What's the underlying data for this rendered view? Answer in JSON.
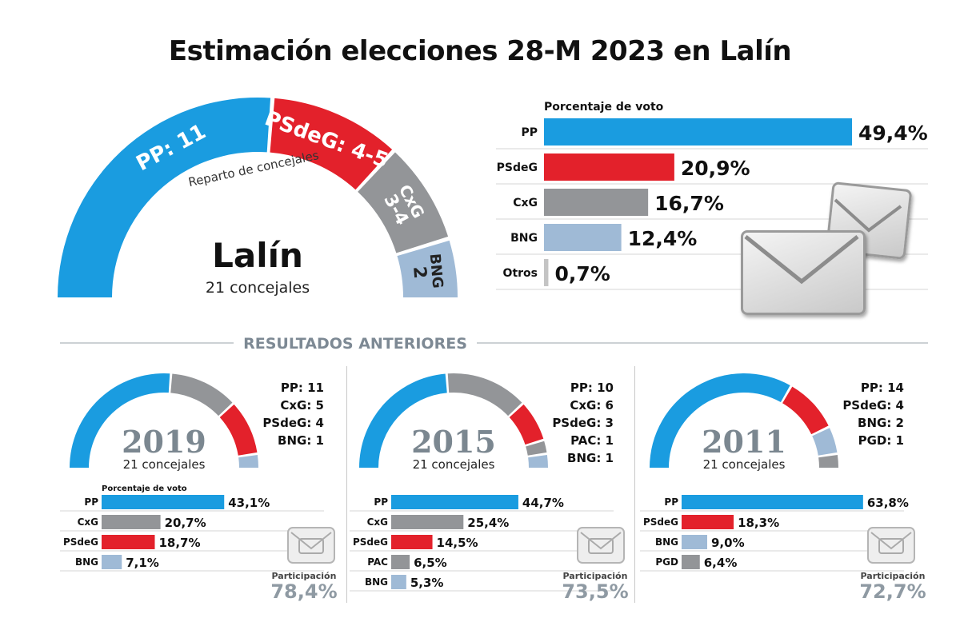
{
  "title": "Estimación elecciones 28-M 2023 en Lalín",
  "colors": {
    "PP": "#1a9ce0",
    "PSdeG": "#e3212b",
    "CxG": "#939598",
    "BNG": "#9fbad6",
    "PAC": "#939598",
    "PGD": "#939598",
    "Otros": "#c4c4c4"
  },
  "main": {
    "name": "Lalín",
    "subtitle": "21 concejales",
    "reparto_label": "Reparto de concejales",
    "seat_labels": [
      "PP: 11",
      "PSdeG: 4-5",
      "CxG 3-4",
      "BNG 2"
    ],
    "icons": [
      "envelope-icon",
      "envelope-icon"
    ]
  },
  "separator_label": "RESULTADOS ANTERIORES",
  "chart_data": [
    {
      "type": "pie",
      "subtype": "parliament-semicircle",
      "title": "Reparto de concejales",
      "total_label": "21 concejales",
      "categories": [
        "PP",
        "PSdeG",
        "CxG",
        "BNG"
      ],
      "values": [
        11,
        4.5,
        3.5,
        2
      ],
      "labels": [
        "PP: 11",
        "PSdeG: 4-5",
        "CxG 3-4",
        "BNG 2"
      ]
    },
    {
      "type": "bar",
      "orientation": "horizontal",
      "title": "Porcentaje de voto",
      "categories": [
        "PP",
        "PSdeG",
        "CxG",
        "BNG",
        "Otros"
      ],
      "values": [
        49.4,
        20.9,
        16.7,
        12.4,
        0.7
      ],
      "value_labels": [
        "49,4%",
        "20,9%",
        "16,7%",
        "12,4%",
        "0,7%"
      ],
      "xlim": [
        0,
        60
      ]
    }
  ],
  "previous": [
    {
      "year": "2019",
      "subtitle": "21 concejales",
      "seats": [
        {
          "party": "PP",
          "seats": 11
        },
        {
          "party": "CxG",
          "seats": 5
        },
        {
          "party": "PSdeG",
          "seats": 4
        },
        {
          "party": "BNG",
          "seats": 1
        }
      ],
      "seat_texts": [
        "PP: 11",
        "CxG: 5",
        "PSdeG: 4",
        "BNG: 1"
      ],
      "bars_title": "Porcentaje de voto",
      "bars": [
        {
          "party": "PP",
          "value": 43.1,
          "label": "43,1%"
        },
        {
          "party": "CxG",
          "value": 20.7,
          "label": "20,7%"
        },
        {
          "party": "PSdeG",
          "value": 18.7,
          "label": "18,7%"
        },
        {
          "party": "BNG",
          "value": 7.1,
          "label": "7,1%"
        }
      ],
      "participation_label": "Participación",
      "participation": "78,4%"
    },
    {
      "year": "2015",
      "subtitle": "21 concejales",
      "seats": [
        {
          "party": "PP",
          "seats": 10
        },
        {
          "party": "CxG",
          "seats": 6
        },
        {
          "party": "PSdeG",
          "seats": 3
        },
        {
          "party": "PAC",
          "seats": 1
        },
        {
          "party": "BNG",
          "seats": 1
        }
      ],
      "seat_texts": [
        "PP: 10",
        "CxG: 6",
        "PSdeG: 3",
        "PAC: 1",
        "BNG: 1"
      ],
      "bars_title": "",
      "bars": [
        {
          "party": "PP",
          "value": 44.7,
          "label": "44,7%"
        },
        {
          "party": "CxG",
          "value": 25.4,
          "label": "25,4%"
        },
        {
          "party": "PSdeG",
          "value": 14.5,
          "label": "14,5%"
        },
        {
          "party": "PAC",
          "value": 6.5,
          "label": "6,5%"
        },
        {
          "party": "BNG",
          "value": 5.3,
          "label": "5,3%"
        }
      ],
      "participation_label": "Participación",
      "participation": "73,5%"
    },
    {
      "year": "2011",
      "subtitle": "21 concejales",
      "seats": [
        {
          "party": "PP",
          "seats": 14
        },
        {
          "party": "PSdeG",
          "seats": 4
        },
        {
          "party": "BNG",
          "seats": 2
        },
        {
          "party": "PGD",
          "seats": 1
        }
      ],
      "seat_texts": [
        "PP: 14",
        "PSdeG: 4",
        "BNG: 2",
        "PGD: 1"
      ],
      "bars_title": "",
      "bars": [
        {
          "party": "PP",
          "value": 63.8,
          "label": "63,8%"
        },
        {
          "party": "PSdeG",
          "value": 18.3,
          "label": "18,3%"
        },
        {
          "party": "BNG",
          "value": 9.0,
          "label": "9,0%"
        },
        {
          "party": "PGD",
          "value": 6.4,
          "label": "6,4%"
        }
      ],
      "participation_label": "Participación",
      "participation": "72,7%"
    }
  ]
}
